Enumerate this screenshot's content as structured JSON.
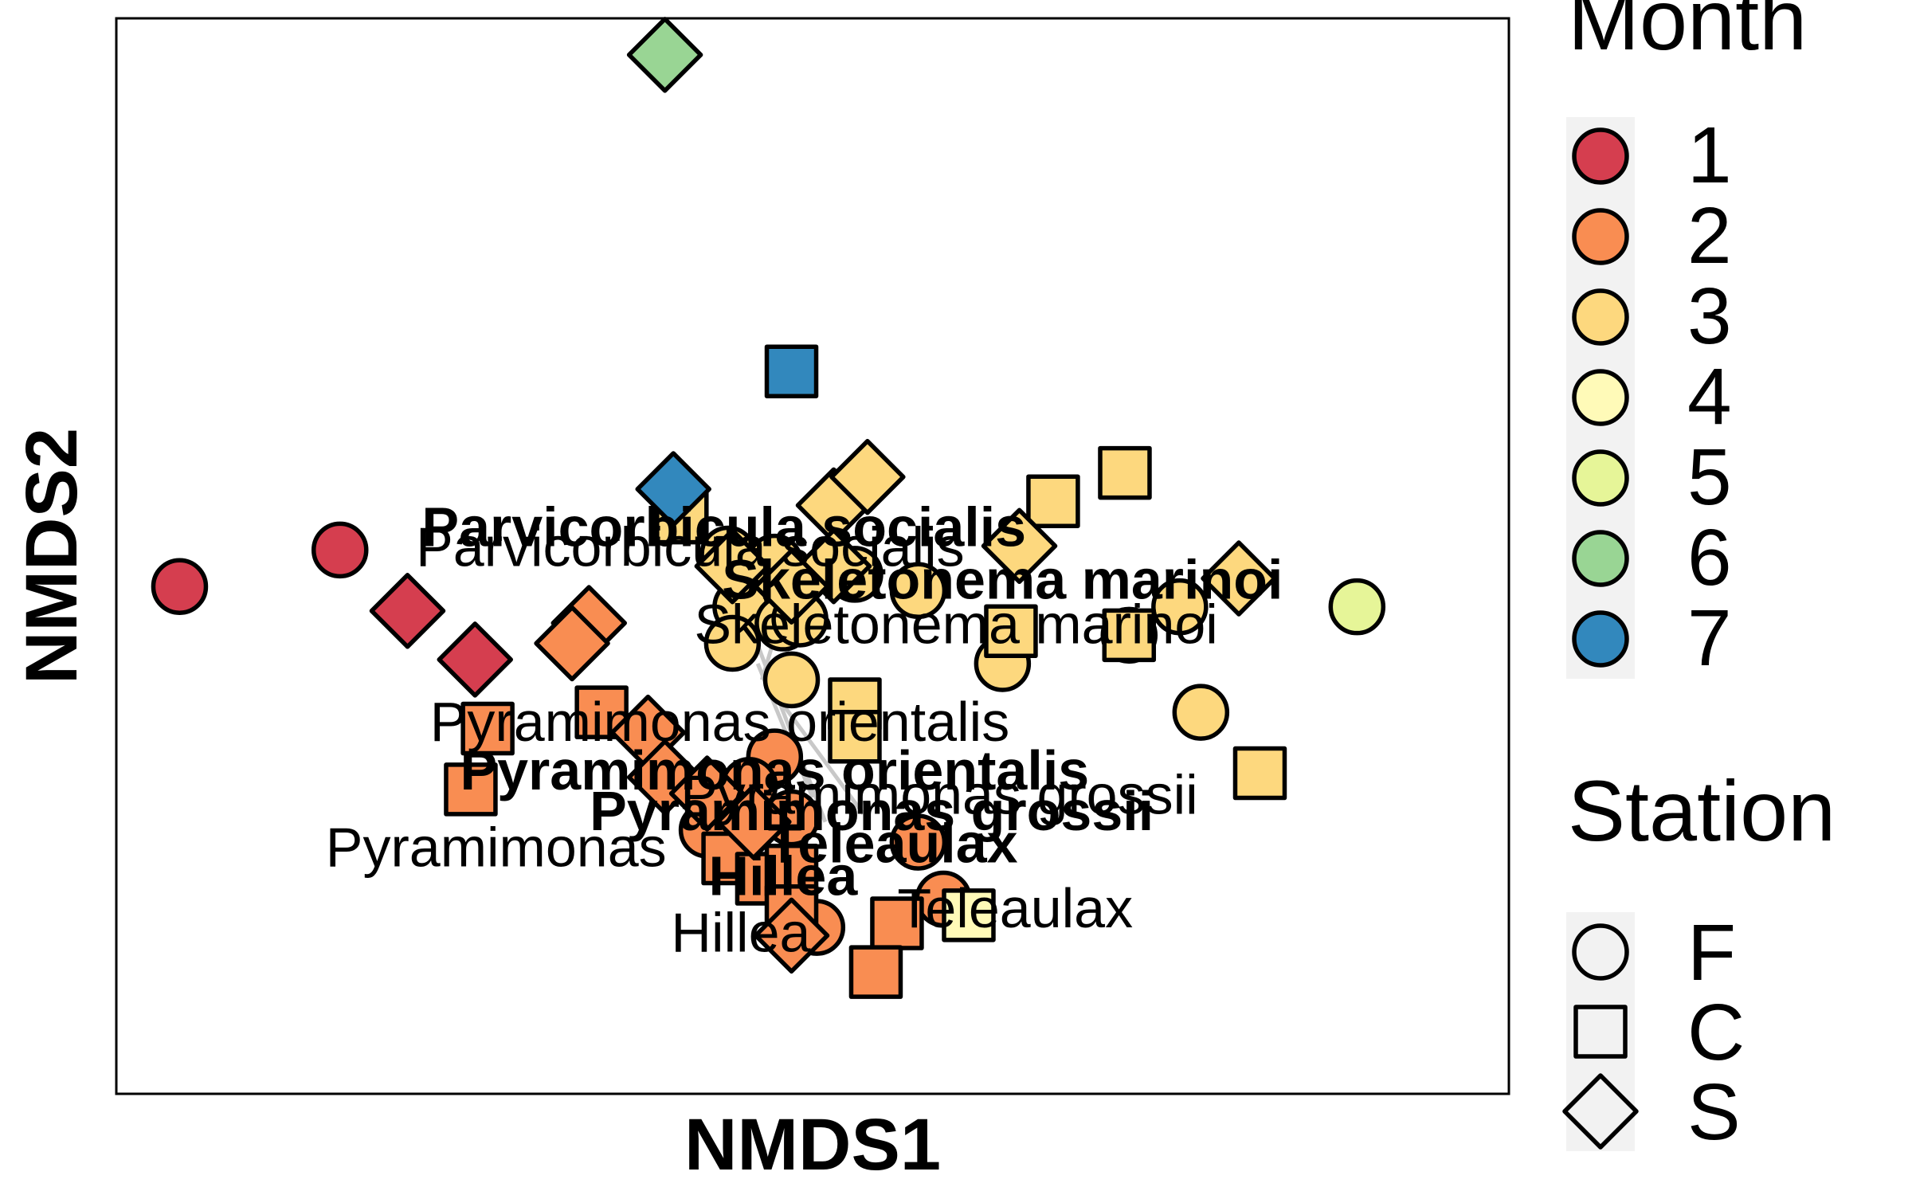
{
  "chart_data": {
    "type": "scatter",
    "title": "",
    "xlabel": "NMDS1",
    "ylabel": "NMDS2",
    "xlim": [
      -1.4,
      1.9
    ],
    "ylim": [
      -1.0,
      1.65
    ],
    "grid": false,
    "legend_position": "right",
    "legends": {
      "month": {
        "title": "Month",
        "entries": [
          {
            "label": "1",
            "color": "#d53e4f"
          },
          {
            "label": "2",
            "color": "#f98d52"
          },
          {
            "label": "3",
            "color": "#fdd87e"
          },
          {
            "label": "4",
            "color": "#fffab8"
          },
          {
            "label": "5",
            "color": "#e6f598"
          },
          {
            "label": "6",
            "color": "#99d594"
          },
          {
            "label": "7",
            "color": "#3288bd"
          }
        ]
      },
      "station": {
        "title": "Station",
        "entries": [
          {
            "label": "F",
            "shape": "circle"
          },
          {
            "label": "C",
            "shape": "square"
          },
          {
            "label": "S",
            "shape": "diamond"
          }
        ]
      }
    },
    "points": [
      {
        "x": -1.25,
        "y": 0.25,
        "month": "1",
        "station": "F"
      },
      {
        "x": -0.87,
        "y": 0.34,
        "month": "1",
        "station": "F"
      },
      {
        "x": -0.71,
        "y": 0.19,
        "month": "1",
        "station": "S"
      },
      {
        "x": -0.55,
        "y": 0.07,
        "month": "1",
        "station": "S"
      },
      {
        "x": 0.26,
        "y": -0.59,
        "month": "2",
        "station": "F"
      },
      {
        "x": 0.16,
        "y": -0.17,
        "month": "2",
        "station": "F"
      },
      {
        "x": 0.1,
        "y": -0.24,
        "month": "2",
        "station": "F"
      },
      {
        "x": 0.0,
        "y": -0.35,
        "month": "2",
        "station": "F"
      },
      {
        "x": 0.2,
        "y": -0.32,
        "month": "2",
        "station": "F"
      },
      {
        "x": 0.5,
        "y": -0.38,
        "month": "2",
        "station": "F"
      },
      {
        "x": 0.56,
        "y": -0.52,
        "month": "2",
        "station": "F"
      },
      {
        "x": -0.52,
        "y": -0.1,
        "month": "2",
        "station": "C"
      },
      {
        "x": -0.56,
        "y": -0.25,
        "month": "2",
        "station": "C"
      },
      {
        "x": -0.25,
        "y": -0.06,
        "month": "2",
        "station": "C"
      },
      {
        "x": 0.05,
        "y": -0.42,
        "month": "2",
        "station": "C"
      },
      {
        "x": 0.13,
        "y": -0.47,
        "month": "2",
        "station": "C"
      },
      {
        "x": 0.2,
        "y": -0.45,
        "month": "2",
        "station": "C"
      },
      {
        "x": 0.2,
        "y": -0.55,
        "month": "2",
        "station": "C"
      },
      {
        "x": 0.45,
        "y": -0.58,
        "month": "2",
        "station": "C"
      },
      {
        "x": 0.4,
        "y": -0.7,
        "month": "2",
        "station": "C"
      },
      {
        "x": -0.28,
        "y": 0.16,
        "month": "2",
        "station": "S"
      },
      {
        "x": -0.32,
        "y": 0.11,
        "month": "2",
        "station": "S"
      },
      {
        "x": -0.14,
        "y": -0.11,
        "month": "2",
        "station": "S"
      },
      {
        "x": -0.1,
        "y": -0.22,
        "month": "2",
        "station": "S"
      },
      {
        "x": 0.0,
        "y": -0.26,
        "month": "2",
        "station": "S"
      },
      {
        "x": 0.11,
        "y": -0.33,
        "month": "2",
        "station": "S"
      },
      {
        "x": 0.2,
        "y": -0.61,
        "month": "2",
        "station": "S"
      },
      {
        "x": 0.05,
        "y": 0.33,
        "month": "3",
        "station": "F"
      },
      {
        "x": 0.08,
        "y": 0.2,
        "month": "3",
        "station": "F"
      },
      {
        "x": 0.06,
        "y": 0.11,
        "month": "3",
        "station": "F"
      },
      {
        "x": 0.16,
        "y": 0.31,
        "month": "3",
        "station": "F"
      },
      {
        "x": 0.18,
        "y": 0.16,
        "month": "3",
        "station": "F"
      },
      {
        "x": 0.5,
        "y": 0.24,
        "month": "3",
        "station": "F"
      },
      {
        "x": 0.7,
        "y": 0.06,
        "month": "3",
        "station": "F"
      },
      {
        "x": 1.12,
        "y": 0.2,
        "month": "3",
        "station": "F"
      },
      {
        "x": 0.35,
        "y": 0.28,
        "month": "3",
        "station": "F"
      },
      {
        "x": 0.2,
        "y": 0.02,
        "month": "3",
        "station": "F"
      },
      {
        "x": 0.22,
        "y": 0.17,
        "month": "3",
        "station": "F"
      },
      {
        "x": 1.0,
        "y": 0.13,
        "month": "3",
        "station": "F"
      },
      {
        "x": 1.17,
        "y": -0.06,
        "month": "3",
        "station": "F"
      },
      {
        "x": -0.06,
        "y": 0.42,
        "month": "3",
        "station": "C"
      },
      {
        "x": 0.82,
        "y": 0.46,
        "month": "3",
        "station": "C"
      },
      {
        "x": 0.99,
        "y": 0.53,
        "month": "3",
        "station": "C"
      },
      {
        "x": 0.35,
        "y": -0.04,
        "month": "3",
        "station": "C"
      },
      {
        "x": 0.35,
        "y": -0.12,
        "month": "3",
        "station": "C"
      },
      {
        "x": 1.0,
        "y": 0.13,
        "month": "3",
        "station": "C"
      },
      {
        "x": 0.72,
        "y": 0.14,
        "month": "3",
        "station": "C"
      },
      {
        "x": 1.31,
        "y": -0.21,
        "month": "3",
        "station": "C"
      },
      {
        "x": 0.3,
        "y": 0.45,
        "month": "3",
        "station": "S"
      },
      {
        "x": 0.38,
        "y": 0.52,
        "month": "3",
        "station": "S"
      },
      {
        "x": 0.06,
        "y": 0.3,
        "month": "3",
        "station": "S"
      },
      {
        "x": 0.3,
        "y": 0.3,
        "month": "3",
        "station": "S"
      },
      {
        "x": 0.2,
        "y": 0.25,
        "month": "3",
        "station": "S"
      },
      {
        "x": 0.74,
        "y": 0.35,
        "month": "3",
        "station": "S"
      },
      {
        "x": 1.26,
        "y": 0.27,
        "month": "3",
        "station": "S"
      },
      {
        "x": 0.62,
        "y": -0.56,
        "month": "4",
        "station": "C"
      },
      {
        "x": 1.54,
        "y": 0.2,
        "month": "5",
        "station": "F"
      },
      {
        "x": -0.1,
        "y": 1.56,
        "month": "6",
        "station": "S"
      },
      {
        "x": 0.2,
        "y": 0.78,
        "month": "7",
        "station": "C"
      },
      {
        "x": -0.08,
        "y": 0.49,
        "month": "7",
        "station": "S"
      }
    ],
    "species_labels": [
      {
        "text": "Parvicorbicula socialis",
        "x": 0.04,
        "y": 0.35,
        "bold": true
      },
      {
        "text": "Parvicorbicula socialis",
        "x": -0.04,
        "y": 0.3,
        "bold": false
      },
      {
        "text": "Skeletonema marinoi",
        "x": 0.7,
        "y": 0.22,
        "bold": true
      },
      {
        "text": "Skeletonema marinoi",
        "x": 0.59,
        "y": 0.11,
        "bold": false
      },
      {
        "text": "Pyramimonas orientalis",
        "x": 0.03,
        "y": -0.13,
        "bold": false
      },
      {
        "text": "Pyramimonas orientalis",
        "x": 0.16,
        "y": -0.25,
        "bold": true
      },
      {
        "text": "Pyramimonas grossii",
        "x": 0.55,
        "y": -0.31,
        "bold": false
      },
      {
        "text": "Pyramimonas grossii",
        "x": 0.39,
        "y": -0.35,
        "bold": true
      },
      {
        "text": "Pyramimonas",
        "x": -0.5,
        "y": -0.44,
        "bold": false
      },
      {
        "text": "Teleaulax",
        "x": 0.44,
        "y": -0.43,
        "bold": true
      },
      {
        "text": "Hillea",
        "x": 0.18,
        "y": -0.51,
        "bold": true
      },
      {
        "text": "Teleaulax",
        "x": 0.73,
        "y": -0.59,
        "bold": false
      },
      {
        "text": "Hillea",
        "x": 0.08,
        "y": -0.65,
        "bold": false
      }
    ]
  }
}
